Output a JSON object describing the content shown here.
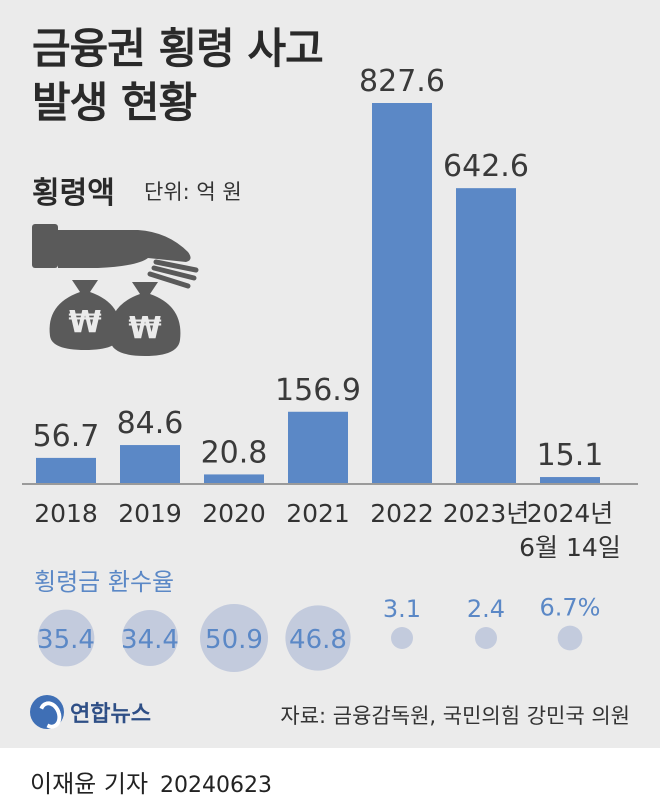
{
  "header": {
    "title_line1": "금융권 횡령 사고",
    "title_line2": "발생 현황",
    "amount_label": "횡령액",
    "unit_label": "단위: 억 원"
  },
  "illustration": {
    "icon": "hand-over-money-bags-icon",
    "symbol": "₩"
  },
  "chart_data": {
    "type": "bar",
    "title": "",
    "xlabel": "",
    "ylabel": "",
    "categories": [
      "2018",
      "2019",
      "2020",
      "2021",
      "2022",
      "2023년",
      "2024년 6월 14일"
    ],
    "category_lines": [
      [
        "2018"
      ],
      [
        "2019"
      ],
      [
        "2020"
      ],
      [
        "2021"
      ],
      [
        "2022"
      ],
      [
        "2023년"
      ],
      [
        "2024년",
        "6월 14일"
      ]
    ],
    "series": [
      {
        "values": [
          56.7,
          84.6,
          20.8,
          156.9,
          827.6,
          642.6,
          15.1
        ],
        "labels": [
          "56.7",
          "84.6",
          "20.8",
          "156.9",
          "827.6",
          "642.6",
          "15.1"
        ]
      }
    ],
    "ylim": [
      0,
      827.6
    ],
    "grid": false,
    "bar_color": "#5b88c6",
    "recovery_rate": {
      "title": "횡령금 환수율",
      "values": [
        35.4,
        34.4,
        50.9,
        46.8,
        3.1,
        2.4,
        6.7
      ],
      "labels": [
        "35.4",
        "34.4",
        "50.9",
        "46.8",
        "3.1",
        "2.4",
        "6.7%"
      ],
      "circle_color": "#c3cbdd",
      "text_color": "#5b88c6"
    }
  },
  "footer": {
    "logo_text": "연합뉴스",
    "source": "자료: 금융감독원, 국민의힘 강민국 의원"
  },
  "byline": {
    "author": "이재윤 기자",
    "date": "20240623"
  }
}
